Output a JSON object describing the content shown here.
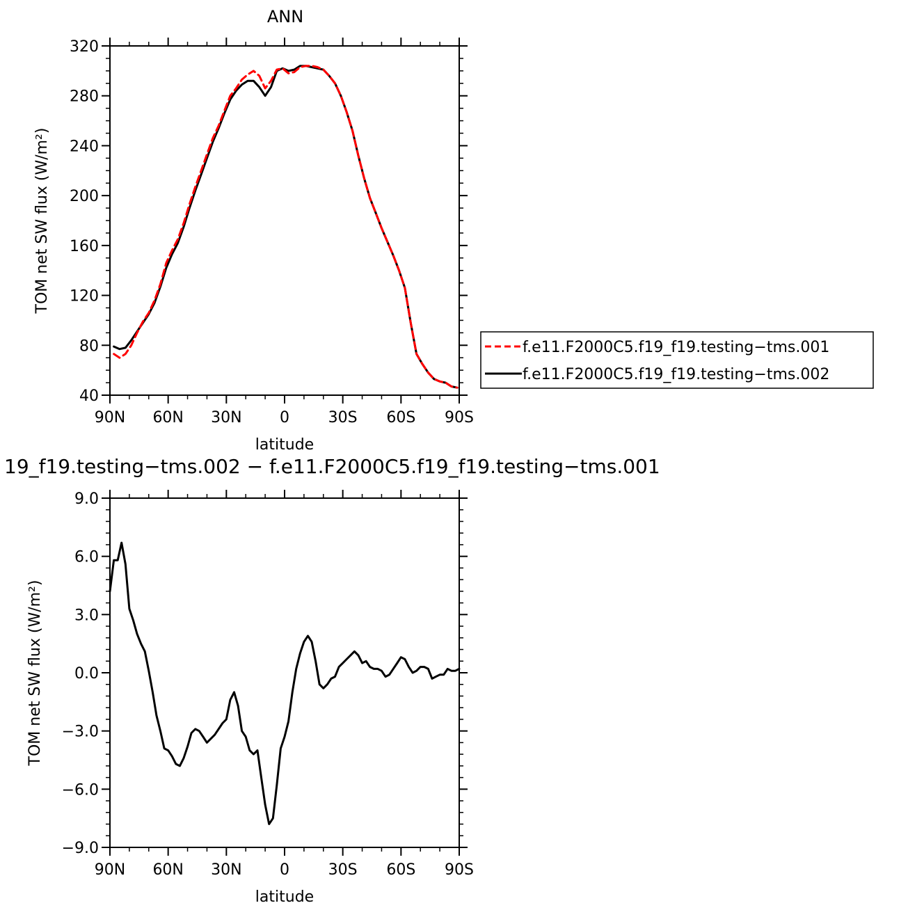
{
  "chart_data": [
    {
      "type": "line",
      "title": "ANN",
      "xlabel": "latitude",
      "ylabel": "TOM net SW flux (W/m²)",
      "xlim": [
        -90,
        90
      ],
      "ylim": [
        40,
        320
      ],
      "x_ticks": [
        -90,
        -60,
        -30,
        0,
        30,
        60,
        90
      ],
      "x_tick_labels": [
        "90N",
        "60N",
        "30N",
        "0",
        "30S",
        "60S",
        "90S"
      ],
      "y_ticks": [
        40,
        80,
        120,
        160,
        200,
        240,
        280,
        320
      ],
      "y_tick_labels": [
        "40",
        "80",
        "120",
        "160",
        "200",
        "240",
        "280",
        "320"
      ],
      "legend_position": "right",
      "x": [
        -88,
        -85,
        -82,
        -79,
        -76,
        -73,
        -70,
        -67,
        -64,
        -61,
        -58,
        -55,
        -52,
        -49,
        -46,
        -43,
        -40,
        -37,
        -34,
        -31,
        -28,
        -25,
        -22,
        -19,
        -16,
        -13,
        -10,
        -7,
        -4,
        -1,
        2,
        5,
        8,
        11,
        14,
        17,
        20,
        23,
        26,
        29,
        32,
        35,
        38,
        41,
        44,
        47,
        50,
        53,
        56,
        59,
        62,
        65,
        68,
        71,
        74,
        77,
        80,
        83,
        86,
        89
      ],
      "series": [
        {
          "name": "f.e11.F2000C5.f19_f19.testing−tms.001",
          "color": "#ff0000",
          "dash": "dashed",
          "values": [
            73,
            70,
            73,
            80,
            90,
            99,
            106,
            116,
            129,
            146,
            156,
            165,
            178,
            193,
            207,
            220,
            233,
            246,
            256,
            268,
            280,
            286,
            293,
            297,
            300,
            296,
            286,
            292,
            301,
            302,
            298,
            299,
            303,
            304,
            304,
            303,
            301,
            296,
            290,
            280,
            267,
            252,
            232,
            214,
            198,
            186,
            174,
            163,
            152,
            140,
            126,
            98,
            73,
            65,
            58,
            53,
            51,
            50,
            47,
            46
          ]
        },
        {
          "name": "f.e11.F2000C5.f19_f19.testing−tms.002",
          "color": "#000000",
          "dash": "solid",
          "values": [
            79,
            77,
            78,
            84,
            91,
            98,
            105,
            114,
            127,
            142,
            153,
            162,
            175,
            190,
            204,
            217,
            230,
            243,
            254,
            266,
            277,
            284,
            289,
            292,
            292,
            287,
            280,
            287,
            300,
            302,
            300,
            301,
            304,
            304,
            303,
            302,
            301,
            296,
            290,
            280,
            267,
            252,
            232,
            214,
            198,
            186,
            174,
            163,
            152,
            140,
            126,
            98,
            73,
            65,
            58,
            53,
            51,
            50,
            47,
            46
          ]
        }
      ]
    },
    {
      "type": "line",
      "title": "19_f19.testing−tms.002 − f.e11.F2000C5.f19_f19.testing−tms.001",
      "xlabel": "latitude",
      "ylabel": "TOM net SW flux (W/m²)",
      "xlim": [
        -90,
        90
      ],
      "ylim": [
        -9,
        9
      ],
      "x_ticks": [
        -90,
        -60,
        -30,
        0,
        30,
        60,
        90
      ],
      "x_tick_labels": [
        "90N",
        "60N",
        "30N",
        "0",
        "30S",
        "60S",
        "90S"
      ],
      "y_ticks": [
        -9,
        -6,
        -3,
        0,
        3,
        6,
        9
      ],
      "y_tick_labels": [
        "−9.0",
        "−6.0",
        "−3.0",
        "0.0",
        "3.0",
        "6.0",
        "9.0"
      ],
      "series": [
        {
          "color": "#000000",
          "dash": "solid",
          "x": [
            -90,
            -88,
            -86,
            -84,
            -82,
            -80,
            -78,
            -76,
            -74,
            -72,
            -70,
            -68,
            -66,
            -64,
            -62,
            -60,
            -58,
            -56,
            -54,
            -52,
            -50,
            -48,
            -46,
            -44,
            -42,
            -40,
            -38,
            -36,
            -34,
            -32,
            -30,
            -28,
            -26,
            -24,
            -22,
            -20,
            -18,
            -16,
            -14,
            -12,
            -10,
            -8,
            -6,
            -4,
            -2,
            0,
            2,
            4,
            6,
            8,
            10,
            12,
            14,
            16,
            18,
            20,
            22,
            24,
            26,
            28,
            30,
            32,
            34,
            36,
            38,
            40,
            42,
            44,
            46,
            48,
            50,
            52,
            54,
            56,
            58,
            60,
            62,
            64,
            66,
            68,
            70,
            72,
            74,
            76,
            78,
            80,
            82,
            84,
            86,
            88,
            90
          ],
          "values": [
            4.2,
            5.8,
            5.8,
            6.7,
            5.6,
            3.3,
            2.7,
            2.0,
            1.5,
            1.1,
            0.1,
            -1.0,
            -2.2,
            -3.0,
            -3.9,
            -4.0,
            -4.3,
            -4.7,
            -4.8,
            -4.4,
            -3.8,
            -3.1,
            -2.9,
            -3.0,
            -3.3,
            -3.6,
            -3.4,
            -3.2,
            -2.9,
            -2.6,
            -2.4,
            -1.4,
            -1.0,
            -1.7,
            -3.0,
            -3.3,
            -4.0,
            -4.2,
            -4.0,
            -5.4,
            -6.8,
            -7.8,
            -7.5,
            -5.8,
            -3.9,
            -3.3,
            -2.5,
            -1.0,
            0.2,
            1.0,
            1.6,
            1.9,
            1.6,
            0.6,
            -0.6,
            -0.8,
            -0.6,
            -0.3,
            -0.2,
            0.3,
            0.5,
            0.7,
            0.9,
            1.1,
            0.9,
            0.5,
            0.6,
            0.3,
            0.2,
            0.2,
            0.1,
            -0.2,
            -0.1,
            0.2,
            0.5,
            0.8,
            0.7,
            0.3,
            0.0,
            0.1,
            0.3,
            0.3,
            0.2,
            -0.3,
            -0.2,
            -0.1,
            -0.1,
            0.2,
            0.1,
            0.1,
            0.2
          ]
        }
      ]
    }
  ]
}
